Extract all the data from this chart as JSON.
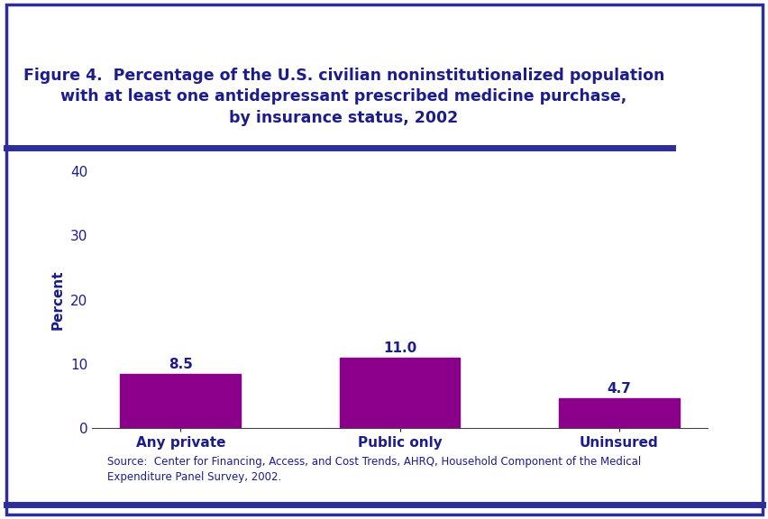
{
  "title_line1": "Figure 4.  Percentage of the U.S. civilian noninstitutionalized population",
  "title_line2": "with at least one antidepressant prescribed medicine purchase,",
  "title_line3": "by insurance status, 2002",
  "categories": [
    "Any private",
    "Public only",
    "Uninsured"
  ],
  "values": [
    8.5,
    11.0,
    4.7
  ],
  "bar_color": "#8B008B",
  "ylabel": "Percent",
  "ylim": [
    0,
    40
  ],
  "yticks": [
    0,
    10,
    20,
    30,
    40
  ],
  "title_color": "#1C1C8C",
  "axis_label_color": "#1C1C8C",
  "tick_label_color": "#1C1C8C",
  "value_label_color": "#1C1C8C",
  "source_text_line1": "Source:  Center for Financing, Access, and Cost Trends, AHRQ, Household Component of the Medical",
  "source_text_line2": "Expenditure Panel Survey, 2002.",
  "background_color": "#FFFFFF",
  "separator_line_color": "#2E2E9A",
  "border_color": "#2E2E9A",
  "title_fontsize": 12.5,
  "axis_label_fontsize": 11,
  "tick_fontsize": 11,
  "value_fontsize": 11,
  "source_fontsize": 8.5,
  "bar_width": 0.55
}
